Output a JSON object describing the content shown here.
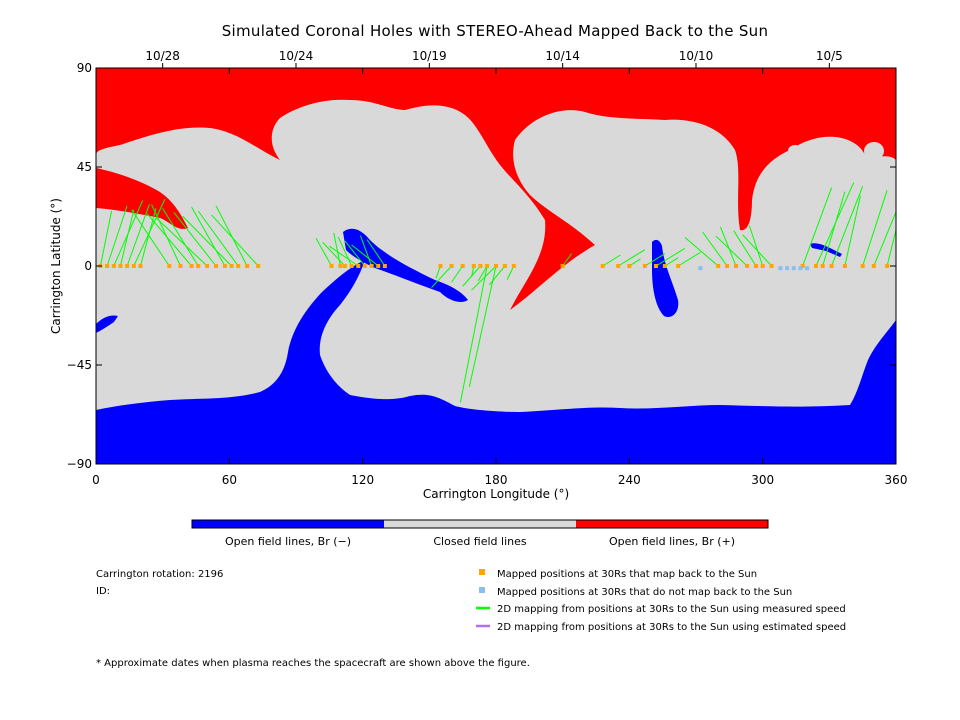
{
  "chart_data": {
    "type": "heatmap",
    "title": "Simulated Coronal Holes with STEREO-Ahead Mapped Back to the Sun",
    "xlabel": "Carrington Longitude (°)",
    "ylabel": "Carrington Latitude (°)",
    "xlim": [
      0,
      360
    ],
    "ylim": [
      -90,
      90
    ],
    "x_ticks": [
      0,
      60,
      120,
      180,
      240,
      300,
      360
    ],
    "y_ticks": [
      -90,
      -45,
      0,
      45,
      90
    ],
    "y_tick_labels": [
      "−90",
      "−45",
      "0",
      "45",
      "90"
    ],
    "top_axis_dates": [
      {
        "label": "10/28",
        "lon": 30
      },
      {
        "label": "10/24",
        "lon": 90
      },
      {
        "label": "10/19",
        "lon": 150
      },
      {
        "label": "10/14",
        "lon": 210
      },
      {
        "label": "10/10",
        "lon": 270
      },
      {
        "label": "10/5",
        "lon": 330
      }
    ],
    "colorbar": [
      {
        "label": "Open field lines, Br (−)",
        "color": "#0000ff"
      },
      {
        "label": "Closed field lines",
        "color": "#d9d9d9"
      },
      {
        "label": "Open field lines, Br (+)",
        "color": "#ff0000"
      }
    ],
    "regions": {
      "positive_open": "northern polar coronal hole with extensions",
      "negative_open": "southern polar coronal hole with extensions",
      "closed": "closed field region"
    },
    "mapped_points_lon": [
      2,
      5,
      8,
      11,
      14,
      17,
      20,
      33,
      38,
      43,
      46,
      50,
      54,
      58,
      61,
      64,
      68,
      73,
      106,
      110,
      112,
      115,
      118,
      121,
      124,
      127,
      130,
      155,
      160,
      165,
      170,
      173,
      176,
      180,
      184,
      188,
      210,
      228,
      235,
      240,
      247,
      252,
      256,
      262,
      280,
      284,
      288,
      293,
      297,
      300,
      304,
      318,
      324,
      327,
      331,
      337,
      345,
      350,
      356
    ],
    "unmapped_points_lon": [
      272,
      308,
      311,
      314,
      317,
      320
    ],
    "colors": {
      "positive": "#ff0000",
      "negative": "#0000ff",
      "closed": "#d9d9d9",
      "mapped_point": "#ffa500",
      "unmapped_point": "#87c0f0",
      "measured_line": "#00ff00",
      "estimated_line": "#b070f0"
    }
  },
  "info": {
    "carrington_rotation": "Carrington rotation: 2196",
    "id": "ID:"
  },
  "legend": [
    {
      "label": "Mapped positions at 30Rs that map back to the Sun",
      "marker": "square",
      "color": "#ffa500"
    },
    {
      "label": "Mapped positions at 30Rs that do not map back to the Sun",
      "marker": "square",
      "color": "#87c0f0"
    },
    {
      "label": "2D mapping from positions at 30Rs to the Sun using measured speed",
      "marker": "line",
      "color": "#00ff00"
    },
    {
      "label": "2D mapping from positions at 30Rs to the Sun using estimated speed",
      "marker": "line",
      "color": "#b070f0"
    }
  ],
  "footnote": "* Approximate dates when plasma reaches the spacecraft are shown above the figure."
}
